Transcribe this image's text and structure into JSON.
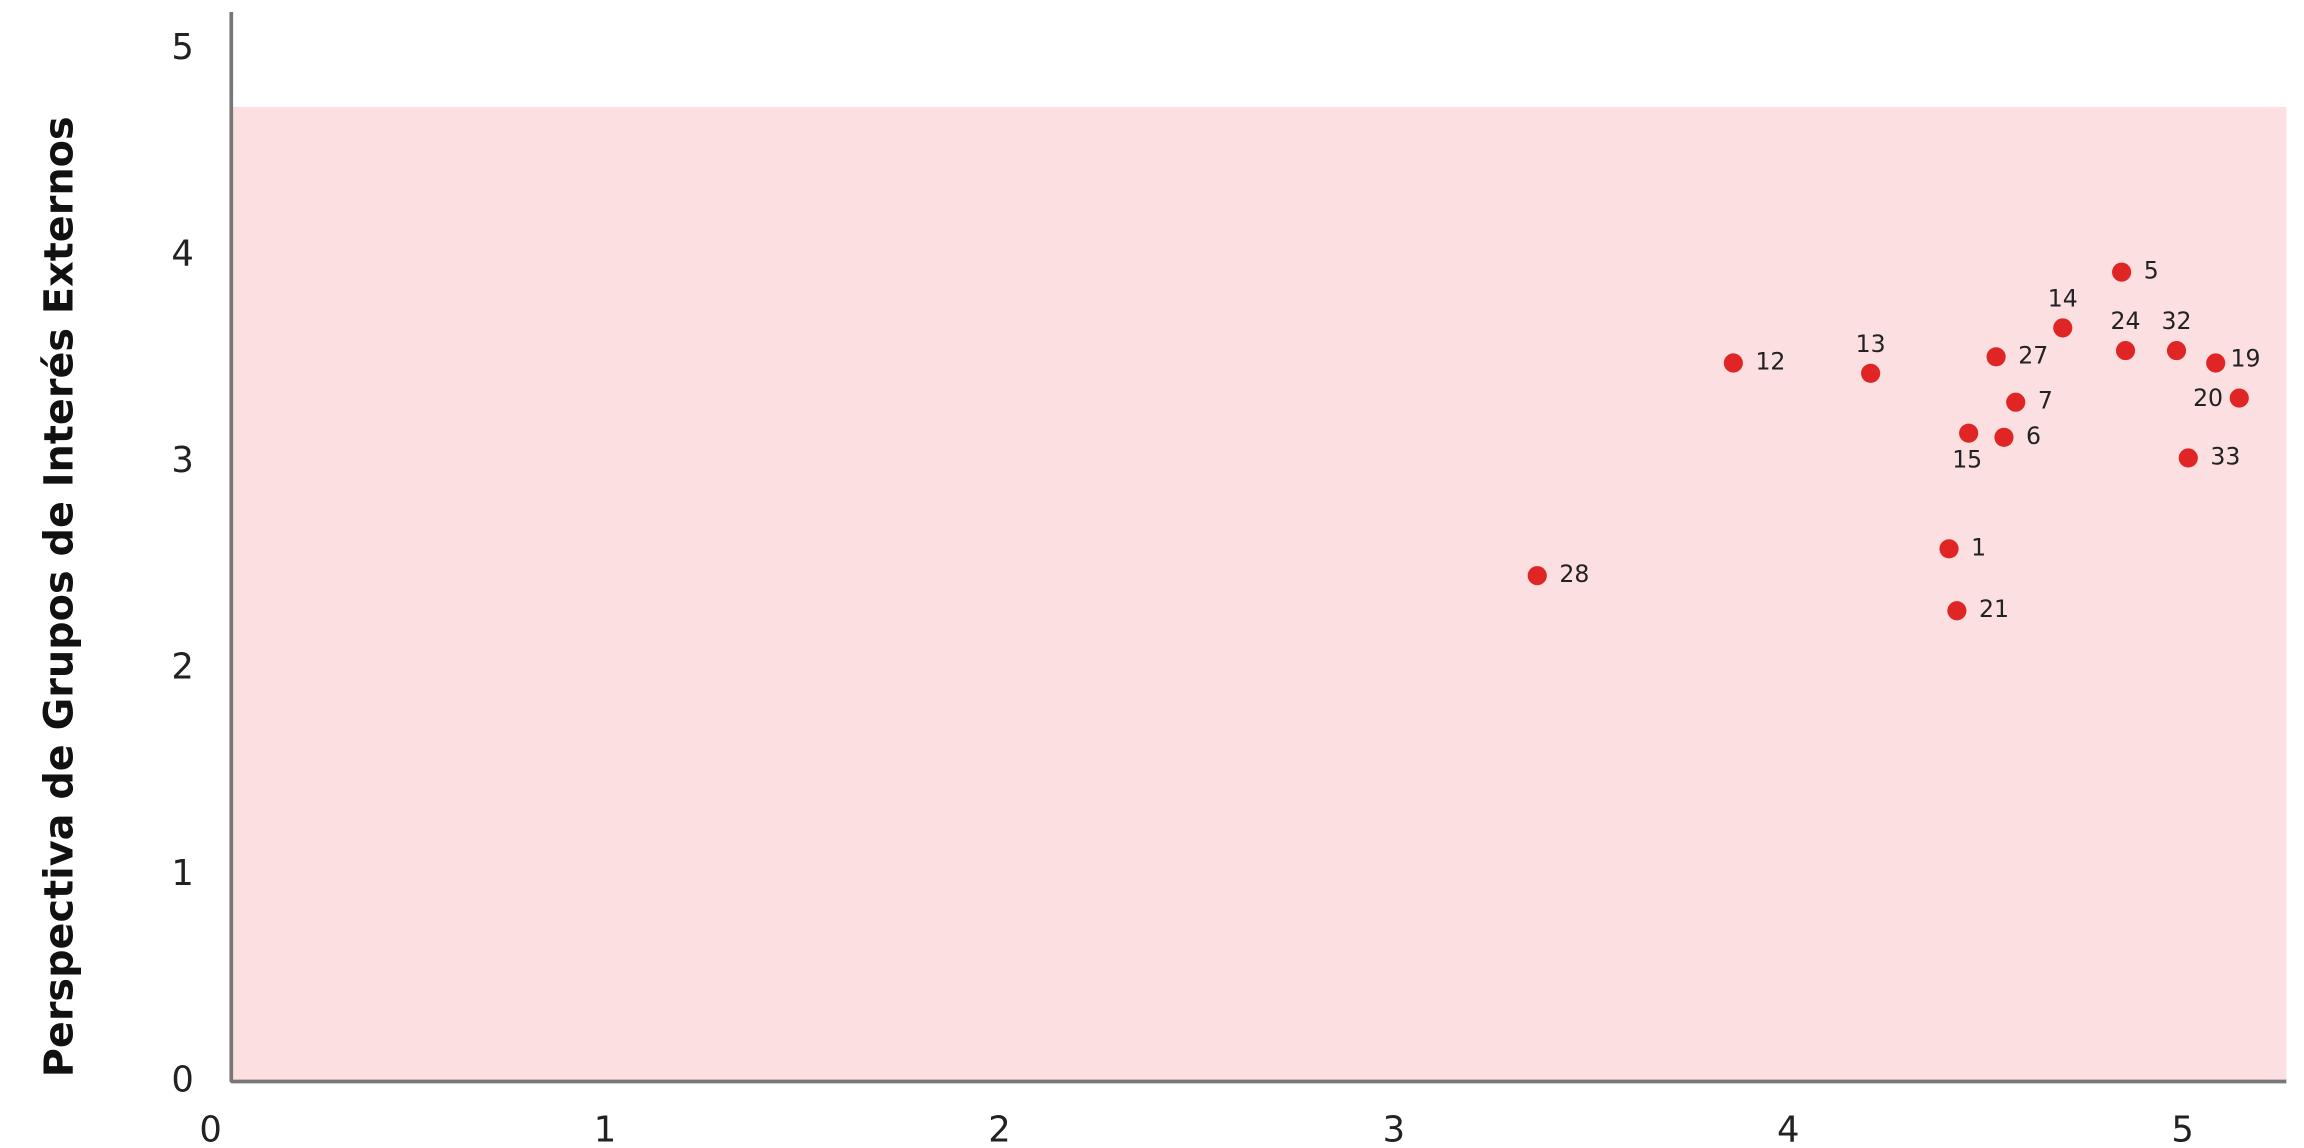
{
  "chart_data": {
    "type": "scatter",
    "y_label": "Perspectiva de Grupos de Interés Externos",
    "color": "#e02525",
    "shaded_region": {
      "y": [
        0,
        4.72
      ],
      "color": "#fbdfe1"
    },
    "labels": [
      "28",
      "12",
      "13",
      "1",
      "21",
      "15",
      "27",
      "6",
      "7",
      "14",
      "5",
      "24",
      "32",
      "33",
      "19",
      "20"
    ],
    "x": [
      3.33,
      3.83,
      4.18,
      4.38,
      4.4,
      4.43,
      4.5,
      4.52,
      4.55,
      4.67,
      4.82,
      4.83,
      4.96,
      4.99,
      5.06,
      5.12
    ],
    "values": [
      2.45,
      3.48,
      3.43,
      2.58,
      2.28,
      3.14,
      3.51,
      3.12,
      3.29,
      3.65,
      3.92,
      3.54,
      3.54,
      3.02,
      3.48,
      3.31
    ],
    "xlim": [
      0,
      5.24
    ],
    "ylim": [
      0,
      5.18
    ],
    "xticks": [
      0,
      1,
      2,
      3,
      4,
      5
    ],
    "yticks": [
      0,
      1,
      2,
      3,
      4,
      5
    ]
  }
}
